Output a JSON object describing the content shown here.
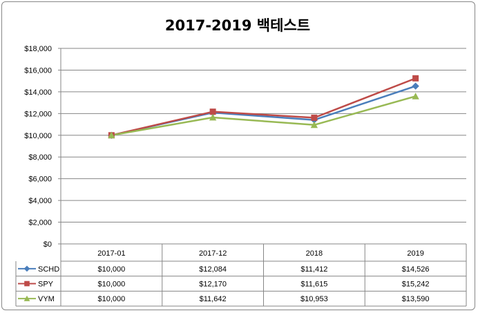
{
  "chart_data": {
    "type": "line",
    "title": "2017-2019 백테스트",
    "categories": [
      "2017-01",
      "2017-12",
      "2018",
      "2019"
    ],
    "ylim": [
      0,
      18000
    ],
    "yticks": [
      0,
      2000,
      4000,
      6000,
      8000,
      10000,
      12000,
      14000,
      16000,
      18000
    ],
    "ytick_labels": [
      "$0",
      "$2,000",
      "$4,000",
      "$6,000",
      "$8,000",
      "$10,000",
      "$12,000",
      "$14,000",
      "$16,000",
      "$18,000"
    ],
    "grid": true,
    "legend": "data-table-bottom",
    "series": [
      {
        "name": "SCHD",
        "color": "#4a7ebb",
        "marker": "diamond",
        "values": [
          10000,
          12084,
          11412,
          14526
        ],
        "labels": [
          "$10,000",
          "$12,084",
          "$11,412",
          "$14,526"
        ]
      },
      {
        "name": "SPY",
        "color": "#be4b48",
        "marker": "square",
        "values": [
          10000,
          12170,
          11615,
          15242
        ],
        "labels": [
          "$10,000",
          "$12,170",
          "$11,615",
          "$15,242"
        ]
      },
      {
        "name": "VYM",
        "color": "#98b954",
        "marker": "triangle",
        "values": [
          10000,
          11642,
          10953,
          13590
        ],
        "labels": [
          "$10,000",
          "$11,642",
          "$10,953",
          "$13,590"
        ]
      }
    ]
  }
}
